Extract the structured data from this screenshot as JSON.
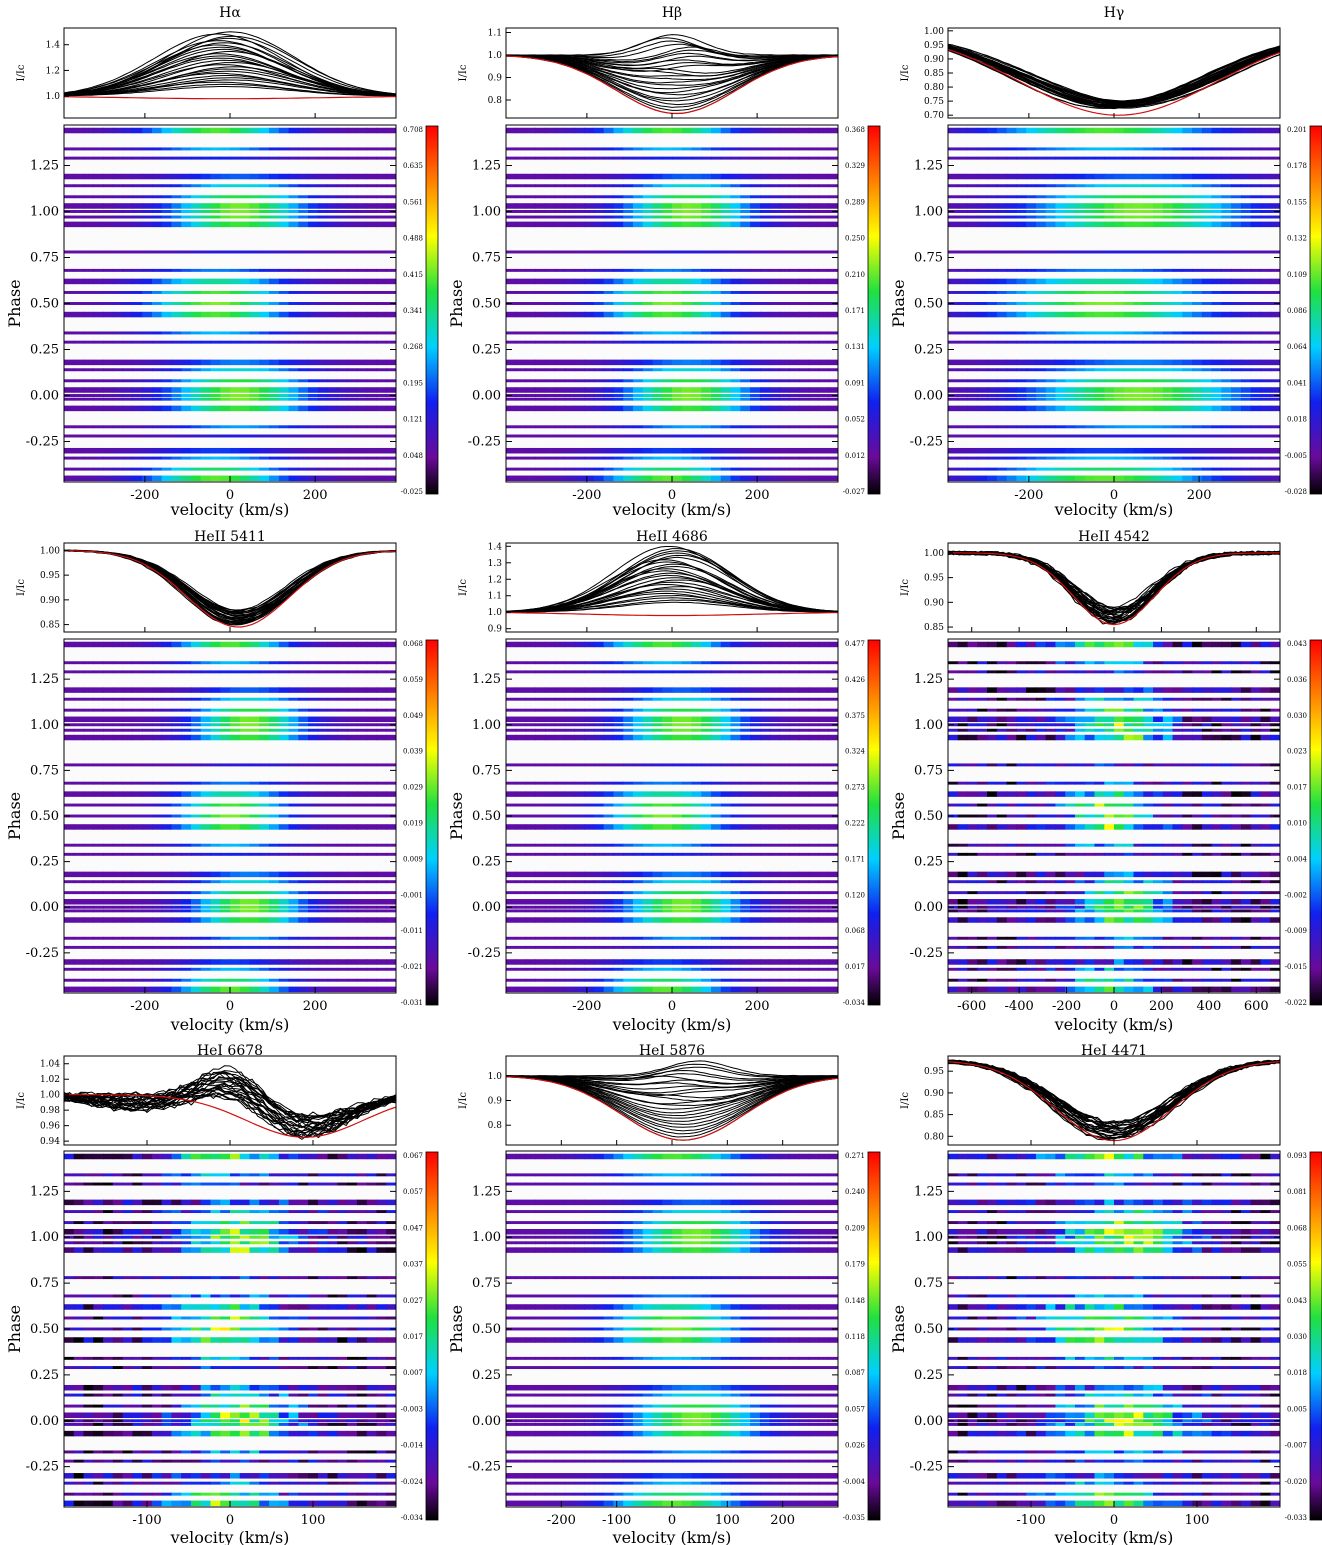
{
  "figure": {
    "ylabel_profile": "I/Ic",
    "ylabel_map": "Phase",
    "xlabel": "velocity (km/s)",
    "phase_ticks": [
      "1.25",
      "1.00",
      "0.75",
      "0.50",
      "0.25",
      "0.00",
      "-0.25"
    ],
    "phase_values": [
      1.25,
      1.0,
      0.75,
      0.5,
      0.25,
      0.0,
      -0.25
    ]
  },
  "chart_data": [
    {
      "type": "heatmap",
      "title": "Hα",
      "xlim": [
        -390,
        390
      ],
      "x_ticks": [
        "-200",
        "0",
        "200"
      ],
      "x_tick_values": [
        -200,
        0,
        200
      ],
      "profile_ylim": [
        0.83,
        1.53
      ],
      "profile_ticks": [
        "1.4",
        "1.2",
        "1.0"
      ],
      "profile_tick_values": [
        1.4,
        1.2,
        1.0
      ],
      "profile_kind": "emission",
      "min_profile_depth": 0.98,
      "max_profile_peak": 1.5,
      "line_center": -10,
      "line_width": 150,
      "colorbar_ticks": [
        "0.708",
        "0.635",
        "0.561",
        "0.488",
        "0.415",
        "0.341",
        "0.268",
        "0.195",
        "0.121",
        "0.048",
        "-0.025"
      ],
      "colorbar_range": [
        -0.025,
        0.708
      ]
    },
    {
      "type": "heatmap",
      "title": "Hβ",
      "xlim": [
        -390,
        390
      ],
      "x_ticks": [
        "-200",
        "0",
        "200"
      ],
      "x_tick_values": [
        -200,
        0,
        200
      ],
      "profile_ylim": [
        0.72,
        1.12
      ],
      "profile_ticks": [
        "1.1",
        "1.0",
        "0.9",
        "0.8"
      ],
      "profile_tick_values": [
        1.1,
        1.0,
        0.9,
        0.8
      ],
      "profile_kind": "mixed",
      "min_profile_depth": 0.74,
      "max_profile_peak": 1.09,
      "line_center": 10,
      "line_width": 140,
      "colorbar_ticks": [
        "0.368",
        "0.329",
        "0.289",
        "0.250",
        "0.210",
        "0.171",
        "0.131",
        "0.091",
        "0.052",
        "0.012",
        "-0.027"
      ],
      "colorbar_range": [
        -0.027,
        0.368
      ]
    },
    {
      "type": "heatmap",
      "title": "Hγ",
      "xlim": [
        -390,
        390
      ],
      "x_ticks": [
        "-200",
        "0",
        "200"
      ],
      "x_tick_values": [
        -200,
        0,
        200
      ],
      "profile_ylim": [
        0.69,
        1.01
      ],
      "profile_ticks": [
        "1.00",
        "0.95",
        "0.90",
        "0.85",
        "0.80",
        "0.75",
        "0.70"
      ],
      "profile_tick_values": [
        1.0,
        0.95,
        0.9,
        0.85,
        0.8,
        0.75,
        0.7
      ],
      "profile_kind": "absorption",
      "min_profile_depth": 0.7,
      "max_profile_peak": 0.87,
      "line_center": 10,
      "line_width": 230,
      "colorbar_ticks": [
        "0.201",
        "0.178",
        "0.155",
        "0.132",
        "0.109",
        "0.086",
        "0.064",
        "0.041",
        "0.018",
        "-0.005",
        "-0.028"
      ],
      "colorbar_range": [
        -0.028,
        0.201
      ]
    },
    {
      "type": "heatmap",
      "title": "HeII 5411",
      "xlim": [
        -390,
        390
      ],
      "x_ticks": [
        "-200",
        "0",
        "200"
      ],
      "x_tick_values": [
        -200,
        0,
        200
      ],
      "profile_ylim": [
        0.835,
        1.015
      ],
      "profile_ticks": [
        "1.00",
        "0.95",
        "0.90",
        "0.85"
      ],
      "profile_tick_values": [
        1.0,
        0.95,
        0.9,
        0.85
      ],
      "profile_kind": "absorption",
      "min_profile_depth": 0.845,
      "max_profile_peak": 0.88,
      "line_center": 20,
      "line_width": 120,
      "colorbar_ticks": [
        "0.068",
        "0.059",
        "0.049",
        "0.039",
        "0.029",
        "0.019",
        "0.009",
        "-0.001",
        "-0.011",
        "-0.021",
        "-0.031"
      ],
      "colorbar_range": [
        -0.031,
        0.068
      ]
    },
    {
      "type": "heatmap",
      "title": "HeII 4686",
      "xlim": [
        -390,
        390
      ],
      "x_ticks": [
        "-200",
        "0",
        "200"
      ],
      "x_tick_values": [
        -200,
        0,
        200
      ],
      "profile_ylim": [
        0.88,
        1.42
      ],
      "profile_ticks": [
        "1.4",
        "1.3",
        "1.2",
        "1.1",
        "1.0",
        "0.9"
      ],
      "profile_tick_values": [
        1.4,
        1.3,
        1.2,
        1.1,
        1.0,
        0.9
      ],
      "profile_kind": "emission",
      "min_profile_depth": 0.9,
      "max_profile_peak": 1.4,
      "line_center": 0,
      "line_width": 130,
      "colorbar_ticks": [
        "0.477",
        "0.426",
        "0.375",
        "0.324",
        "0.273",
        "0.222",
        "0.171",
        "0.120",
        "0.068",
        "0.017",
        "-0.034"
      ],
      "colorbar_range": [
        -0.034,
        0.477
      ]
    },
    {
      "type": "heatmap",
      "title": "HeII 4542",
      "xlim": [
        -700,
        700
      ],
      "x_ticks": [
        "-600",
        "-400",
        "-200",
        "0",
        "200",
        "400",
        "600"
      ],
      "x_tick_values": [
        -600,
        -400,
        -200,
        0,
        200,
        400,
        600
      ],
      "profile_ylim": [
        0.84,
        1.02
      ],
      "profile_ticks": [
        "1.00",
        "0.95",
        "0.90",
        "0.85"
      ],
      "profile_tick_values": [
        1.0,
        0.95,
        0.9,
        0.85
      ],
      "profile_kind": "absorption",
      "min_profile_depth": 0.855,
      "max_profile_peak": 0.87,
      "line_center": 0,
      "line_width": 170,
      "colorbar_ticks": [
        "0.043",
        "0.036",
        "0.030",
        "0.023",
        "0.017",
        "0.010",
        "0.004",
        "-0.002",
        "-0.009",
        "-0.015",
        "-0.022"
      ],
      "colorbar_range": [
        -0.022,
        0.043
      ]
    },
    {
      "type": "heatmap",
      "title": "HeI 6678",
      "xlim": [
        -200,
        200
      ],
      "x_ticks": [
        "-100",
        "0",
        "100"
      ],
      "x_tick_values": [
        -100,
        0,
        100
      ],
      "profile_ylim": [
        0.935,
        1.05
      ],
      "profile_ticks": [
        "1.04",
        "1.02",
        "1.00",
        "0.98",
        "0.96",
        "0.94"
      ],
      "profile_tick_values": [
        1.04,
        1.02,
        1.0,
        0.98,
        0.96,
        0.94
      ],
      "profile_kind": "pcygni",
      "min_profile_depth": 0.945,
      "max_profile_peak": 1.04,
      "line_center": 0,
      "line_width": 60,
      "colorbar_ticks": [
        "0.067",
        "0.057",
        "0.047",
        "0.037",
        "0.027",
        "0.017",
        "0.007",
        "-0.003",
        "-0.014",
        "-0.024",
        "-0.034"
      ],
      "colorbar_range": [
        -0.034,
        0.067
      ]
    },
    {
      "type": "heatmap",
      "title": "HeI 5876",
      "xlim": [
        -300,
        300
      ],
      "x_ticks": [
        "-200",
        "-100",
        "0",
        "100",
        "200"
      ],
      "x_tick_values": [
        -200,
        -100,
        0,
        100,
        200
      ],
      "profile_ylim": [
        0.72,
        1.08
      ],
      "profile_ticks": [
        "1.0",
        "0.9",
        "0.8"
      ],
      "profile_tick_values": [
        1.0,
        0.9,
        0.8
      ],
      "profile_kind": "mixed",
      "min_profile_depth": 0.74,
      "max_profile_peak": 1.06,
      "line_center": 20,
      "line_width": 110,
      "colorbar_ticks": [
        "0.271",
        "0.240",
        "0.209",
        "0.179",
        "0.148",
        "0.118",
        "0.087",
        "0.057",
        "0.026",
        "-0.004",
        "-0.035"
      ],
      "colorbar_range": [
        -0.035,
        0.271
      ]
    },
    {
      "type": "heatmap",
      "title": "HeI 4471",
      "xlim": [
        -200,
        200
      ],
      "x_ticks": [
        "-100",
        "0",
        "100"
      ],
      "x_tick_values": [
        -100,
        0,
        100
      ],
      "profile_ylim": [
        0.78,
        0.985
      ],
      "profile_ticks": [
        "0.95",
        "0.90",
        "0.85",
        "0.80"
      ],
      "profile_tick_values": [
        0.95,
        0.9,
        0.85,
        0.8
      ],
      "profile_kind": "absorption",
      "min_profile_depth": 0.79,
      "max_profile_peak": 0.82,
      "line_center": 0,
      "line_width": 70,
      "colorbar_ticks": [
        "0.093",
        "0.081",
        "0.068",
        "0.055",
        "0.043",
        "0.030",
        "0.018",
        "0.005",
        "-0.007",
        "-0.020",
        "-0.033"
      ],
      "colorbar_range": [
        -0.033,
        0.093
      ]
    }
  ]
}
